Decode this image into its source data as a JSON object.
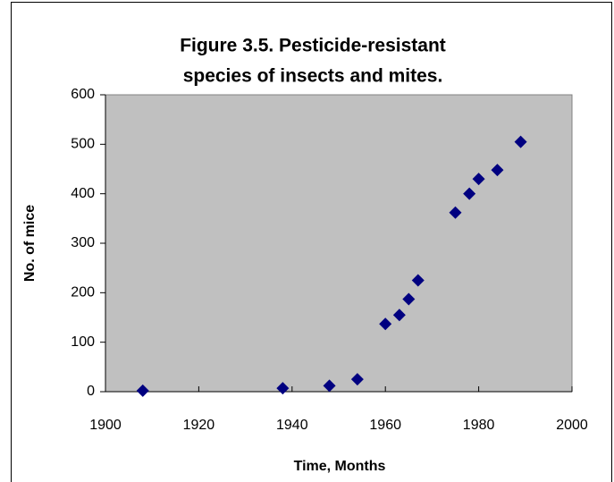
{
  "chart_data": {
    "type": "scatter",
    "title": [
      "Figure 3.5.  Pesticide-resistant",
      "species of insects and mites."
    ],
    "x_label": "Time, Months",
    "y_label": "No. of mice",
    "series": [
      {
        "color": "#000080",
        "x": [
          1908,
          1938,
          1948,
          1954,
          1960,
          1963,
          1965,
          1967,
          1975,
          1978,
          1980,
          1984,
          1989
        ],
        "values": [
          2,
          7,
          12,
          25,
          137,
          155,
          187,
          225,
          362,
          400,
          430,
          448,
          505
        ]
      }
    ],
    "xlim": [
      1900,
      2000
    ],
    "xticks": [
      1900,
      1920,
      1940,
      1960,
      1980,
      2000
    ],
    "ylim": [
      0,
      600
    ],
    "yticks": [
      0,
      100,
      200,
      300,
      400,
      500,
      600
    ],
    "plot_background": "#c0c0c0"
  }
}
